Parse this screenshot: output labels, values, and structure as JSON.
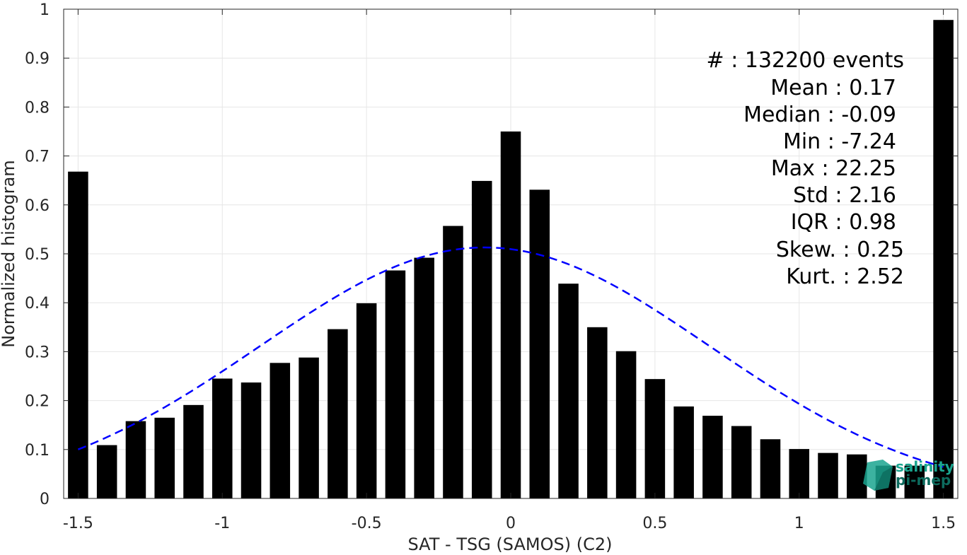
{
  "chart_data": {
    "type": "bar",
    "xlabel": "SAT - TSG (SAMOS) (C2)",
    "ylabel": "Normalized histogram",
    "xlim": [
      -1.55,
      1.55
    ],
    "ylim": [
      0,
      1
    ],
    "grid": true,
    "x_ticks": [
      "-1.5",
      "-1",
      "-0.5",
      "0",
      "0.5",
      "1",
      "1.5"
    ],
    "x_tick_values": [
      -1.5,
      -1,
      -0.5,
      0,
      0.5,
      1,
      1.5
    ],
    "y_ticks": [
      "0",
      "0.1",
      "0.2",
      "0.3",
      "0.4",
      "0.5",
      "0.6",
      "0.7",
      "0.8",
      "0.9",
      "1"
    ],
    "y_tick_values": [
      0,
      0.1,
      0.2,
      0.3,
      0.4,
      0.5,
      0.6,
      0.7,
      0.8,
      0.9,
      1
    ],
    "bar_color": "#000000",
    "bars": {
      "x": [
        -1.5,
        -1.4,
        -1.3,
        -1.2,
        -1.1,
        -1.0,
        -0.9,
        -0.8,
        -0.7,
        -0.6,
        -0.5,
        -0.4,
        -0.3,
        -0.2,
        -0.1,
        0.0,
        0.1,
        0.2,
        0.3,
        0.4,
        0.5,
        0.6,
        0.7,
        0.8,
        0.9,
        1.0,
        1.1,
        1.2,
        1.3,
        1.4,
        1.5
      ],
      "values": [
        0.668,
        0.109,
        0.158,
        0.165,
        0.191,
        0.245,
        0.237,
        0.277,
        0.288,
        0.346,
        0.399,
        0.466,
        0.492,
        0.557,
        0.649,
        0.75,
        0.631,
        0.439,
        0.35,
        0.301,
        0.244,
        0.188,
        0.169,
        0.148,
        0.121,
        0.101,
        0.093,
        0.09,
        0.067,
        0.067,
        0.978
      ]
    },
    "fit_curve": {
      "style": "dashed",
      "color": "#0000ff",
      "mean": -0.09,
      "std": 0.78,
      "peak": 0.513,
      "x_range": [
        -1.5,
        1.5
      ]
    },
    "stats": [
      {
        "label": "#  : 132200 events"
      },
      {
        "label": "Mean : 0.17"
      },
      {
        "label": "Median : -0.09"
      },
      {
        "label": "Min : -7.24"
      },
      {
        "label": "Max : 22.25"
      },
      {
        "label": "Std : 2.16"
      },
      {
        "label": "IQR : 0.98"
      },
      {
        "label": "Skew. : 0.25"
      },
      {
        "label": "Kurt. : 2.52"
      }
    ]
  },
  "logo": {
    "line1": "salinity",
    "line2": "pi-mep",
    "color": "#1aa58f",
    "dark_color": "#0d6b5e"
  }
}
